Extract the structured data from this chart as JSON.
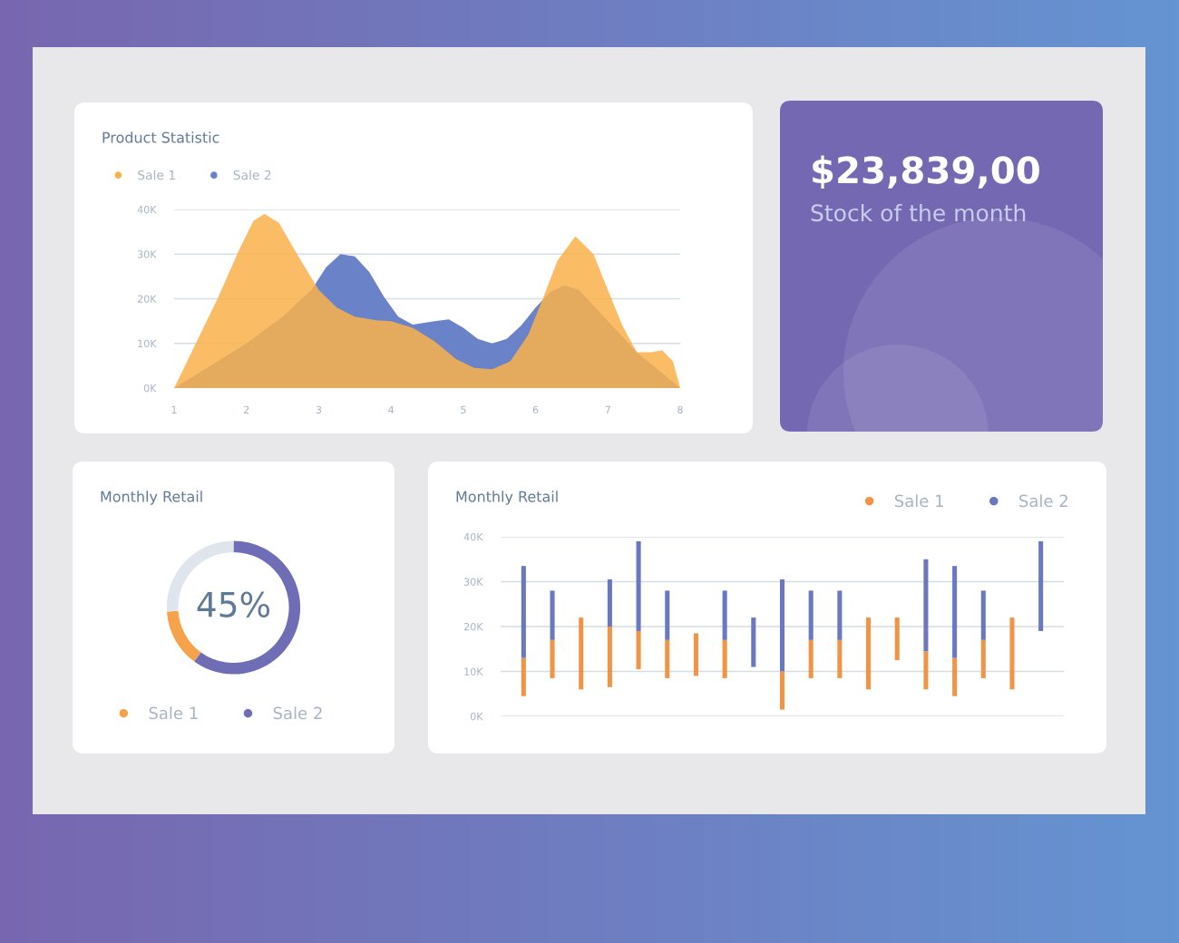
{
  "chart_data": [
    {
      "type": "area",
      "title": "Product Statistic",
      "series": [
        {
          "name": "Sale 1",
          "color": "#f9b24a",
          "x": [
            1,
            1.3,
            1.6,
            1.9,
            2.1,
            2.25,
            2.45,
            2.7,
            3,
            3.25,
            3.5,
            3.8,
            4,
            4.3,
            4.6,
            4.9,
            5.15,
            5.4,
            5.65,
            5.9,
            6.1,
            6.3,
            6.55,
            6.8,
            7,
            7.2,
            7.4,
            7.6,
            7.75,
            7.9,
            8
          ],
          "values": [
            0,
            10000,
            20000,
            31000,
            37500,
            39000,
            37000,
            30000,
            22000,
            18000,
            16000,
            15200,
            15000,
            13500,
            10500,
            6500,
            4500,
            4200,
            6000,
            12000,
            20000,
            28500,
            34000,
            30000,
            22000,
            14000,
            8000,
            8000,
            8500,
            6000,
            0
          ]
        },
        {
          "name": "Sale 2",
          "color": "#6a82c8",
          "x": [
            1,
            1.5,
            2,
            2.5,
            2.9,
            3.1,
            3.3,
            3.5,
            3.7,
            3.9,
            4.1,
            4.3,
            4.6,
            4.8,
            5,
            5.2,
            5.4,
            5.6,
            5.8,
            6,
            6.2,
            6.4,
            6.6,
            6.8,
            7,
            7.2,
            7.4,
            7.7,
            8
          ],
          "values": [
            0,
            5000,
            10000,
            16000,
            22000,
            27000,
            30000,
            29500,
            26000,
            20500,
            16000,
            14200,
            15000,
            15400,
            13500,
            11000,
            10000,
            11000,
            14000,
            18000,
            21500,
            23000,
            22000,
            18500,
            15000,
            11500,
            8000,
            4000,
            0
          ]
        }
      ],
      "xlim": [
        1,
        8
      ],
      "xticks": [
        1,
        2,
        3,
        4,
        5,
        6,
        7,
        8
      ],
      "ylim": [
        0,
        40000
      ],
      "yticks": [
        {
          "value": 0,
          "label": "0K"
        },
        {
          "value": 10000,
          "label": "10K"
        },
        {
          "value": 20000,
          "label": "20K"
        },
        {
          "value": 30000,
          "label": "30K"
        },
        {
          "value": 40000,
          "label": "40K"
        }
      ],
      "grid": "y",
      "legend": "top left"
    },
    {
      "type": "other",
      "title": "$23,839,00",
      "subtitle": "Stock of the month"
    },
    {
      "type": "donut",
      "title": "Monthly Retail",
      "categories": [
        "Sale 1",
        "Sale 2",
        null
      ],
      "values": [
        14,
        60,
        26
      ],
      "colors": [
        "#f6a24b",
        "#6f6db5",
        "#dfe5ec"
      ],
      "annotations": [
        "45%"
      ],
      "legend": "bottom"
    },
    {
      "type": "bar",
      "title": "Monthly Retail",
      "categories": [
        null,
        null,
        null,
        null,
        null,
        null,
        null,
        null,
        null,
        null,
        null,
        null,
        null,
        null,
        null,
        null,
        null,
        null,
        null
      ],
      "series": [
        {
          "name": "Sale 1",
          "color": "#f29446",
          "base": [
            4500,
            8500,
            6000,
            6500,
            10500,
            8500,
            9000,
            8500,
            null,
            1500,
            8500,
            8500,
            6000,
            12500,
            6000,
            4500,
            8500,
            6000,
            null
          ],
          "values": [
            8500,
            8500,
            16000,
            13500,
            8500,
            8500,
            9500,
            8500,
            null,
            8500,
            8500,
            8500,
            16000,
            9500,
            8500,
            8500,
            8500,
            16000,
            null
          ]
        },
        {
          "name": "Sale 2",
          "color": "#6a78c0",
          "base": [
            13000,
            17000,
            null,
            20000,
            19000,
            17000,
            null,
            17000,
            11000,
            10000,
            17000,
            17000,
            null,
            null,
            14500,
            13000,
            17000,
            null,
            19000
          ],
          "values": [
            20500,
            11000,
            null,
            10500,
            20000,
            11000,
            null,
            11000,
            11000,
            20500,
            11000,
            11000,
            null,
            null,
            20500,
            20500,
            11000,
            null,
            20000
          ]
        }
      ],
      "ylim": [
        0,
        40000
      ],
      "yticks": [
        {
          "value": 0,
          "label": "0K"
        },
        {
          "value": 10000,
          "label": "10K"
        },
        {
          "value": 20000,
          "label": "20K"
        },
        {
          "value": 30000,
          "label": "30K"
        },
        {
          "value": 40000,
          "label": "40K"
        }
      ],
      "grid": "y",
      "legend": "top right",
      "tick_labels": "y"
    }
  ]
}
